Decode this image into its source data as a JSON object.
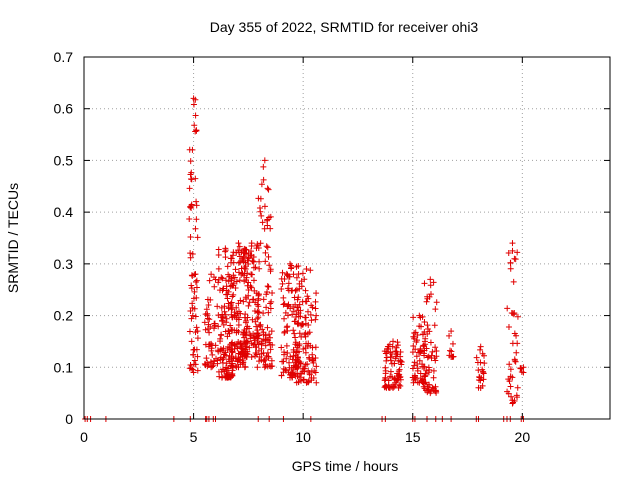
{
  "chart_data": {
    "type": "scatter",
    "title": "Day 355 of 2022, SRMTID for receiver ohi3",
    "xlabel": "GPS time / hours",
    "ylabel": "SRMTID / TECUs",
    "xlim": [
      0,
      24
    ],
    "ylim": [
      0,
      0.7
    ],
    "xticks": [
      0,
      5,
      10,
      15,
      20
    ],
    "yticks": [
      0,
      0.1,
      0.2,
      0.3,
      0.4,
      0.5,
      0.6,
      0.7
    ],
    "xtick_labels": [
      "0",
      "5",
      "10",
      "15",
      "20"
    ],
    "ytick_labels": [
      "0",
      "0.1",
      "0.2",
      "0.3",
      "0.4",
      "0.5",
      "0.6",
      "0.7"
    ],
    "grid": true,
    "marker": "+",
    "marker_color": "#e00000",
    "series": [
      {
        "name": "SRMTID",
        "zero_x": [
          0.05,
          0.15,
          0.3,
          1.0,
          4.1,
          4.85,
          5.55,
          5.6,
          5.7,
          5.9,
          6.0,
          7.95,
          8.45,
          9.1,
          10.35,
          13.6,
          13.75,
          15.0,
          15.1,
          15.65,
          16.05,
          16.35,
          16.75,
          17.9,
          18.0,
          19.15,
          19.3,
          19.45,
          19.95,
          20.05
        ],
        "clusters": [
          {
            "x": [
              4.8,
              5.2
            ],
            "y": [
              0.09,
              0.62
            ],
            "n": 70
          },
          {
            "x": [
              5.5,
              6.1
            ],
            "y": [
              0.1,
              0.28
            ],
            "n": 50
          },
          {
            "x": [
              6.1,
              6.8
            ],
            "y": [
              0.08,
              0.33
            ],
            "n": 130
          },
          {
            "x": [
              6.7,
              7.4
            ],
            "y": [
              0.1,
              0.34
            ],
            "n": 120
          },
          {
            "x": [
              7.3,
              8.0
            ],
            "y": [
              0.12,
              0.34
            ],
            "n": 110
          },
          {
            "x": [
              7.9,
              8.6
            ],
            "y": [
              0.1,
              0.5
            ],
            "n": 90
          },
          {
            "x": [
              9.0,
              9.8
            ],
            "y": [
              0.08,
              0.3
            ],
            "n": 110
          },
          {
            "x": [
              9.7,
              10.6
            ],
            "y": [
              0.07,
              0.29
            ],
            "n": 110
          },
          {
            "x": [
              13.7,
              14.5
            ],
            "y": [
              0.06,
              0.15
            ],
            "n": 80
          },
          {
            "x": [
              15.0,
              15.6
            ],
            "y": [
              0.07,
              0.2
            ],
            "n": 60
          },
          {
            "x": [
              15.5,
              16.1
            ],
            "y": [
              0.05,
              0.27
            ],
            "n": 60
          },
          {
            "x": [
              16.6,
              16.9
            ],
            "y": [
              0.12,
              0.17
            ],
            "n": 8
          },
          {
            "x": [
              17.9,
              18.3
            ],
            "y": [
              0.06,
              0.14
            ],
            "n": 20
          },
          {
            "x": [
              19.3,
              19.8
            ],
            "y": [
              0.03,
              0.34
            ],
            "n": 40
          },
          {
            "x": [
              19.9,
              20.2
            ],
            "y": [
              0.09,
              0.1
            ],
            "n": 4
          }
        ]
      }
    ]
  }
}
